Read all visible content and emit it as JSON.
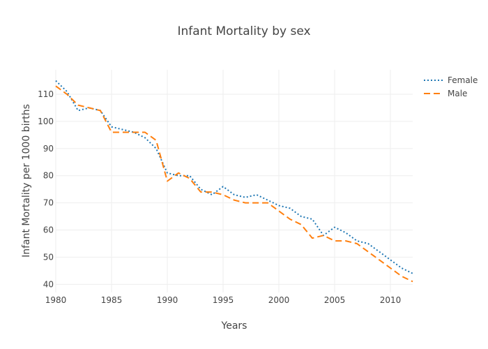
{
  "chart_data": {
    "type": "line",
    "title": "Infant Mortality by sex",
    "xlabel": "Years",
    "ylabel": "Infant Mortality per 1000 births",
    "xlim": [
      1980,
      2012
    ],
    "ylim": [
      37,
      119
    ],
    "xticks": [
      1980,
      1985,
      1990,
      1995,
      2000,
      2005,
      2010
    ],
    "yticks": [
      40,
      50,
      60,
      70,
      80,
      90,
      100,
      110
    ],
    "grid": true,
    "legend_position": "top-right",
    "x": [
      1980,
      1981,
      1982,
      1983,
      1984,
      1985,
      1986,
      1987,
      1988,
      1989,
      1990,
      1991,
      1992,
      1993,
      1994,
      1995,
      1996,
      1997,
      1998,
      1999,
      2000,
      2001,
      2002,
      2003,
      2004,
      2005,
      2006,
      2007,
      2008,
      2009,
      2010,
      2011,
      2012
    ],
    "series": [
      {
        "name": "Female",
        "color": "#1f77b4",
        "dash": "dotted",
        "values": [
          115,
          111,
          104,
          105,
          104,
          98,
          97,
          96,
          94,
          90,
          81,
          80,
          80,
          75,
          73,
          76,
          73,
          72,
          73,
          71,
          69,
          68,
          65,
          64,
          58,
          61,
          59,
          56,
          55,
          52,
          49,
          46,
          44
        ]
      },
      {
        "name": "Male",
        "color": "#ff7f0e",
        "dash": "dashed",
        "values": [
          113,
          110,
          106,
          105,
          104,
          96,
          96,
          96,
          96,
          93,
          78,
          81,
          79,
          74,
          74,
          73,
          71,
          70,
          70,
          70,
          67,
          64,
          62,
          57,
          58,
          56,
          56,
          55,
          52,
          49,
          46,
          43,
          41
        ]
      }
    ]
  }
}
